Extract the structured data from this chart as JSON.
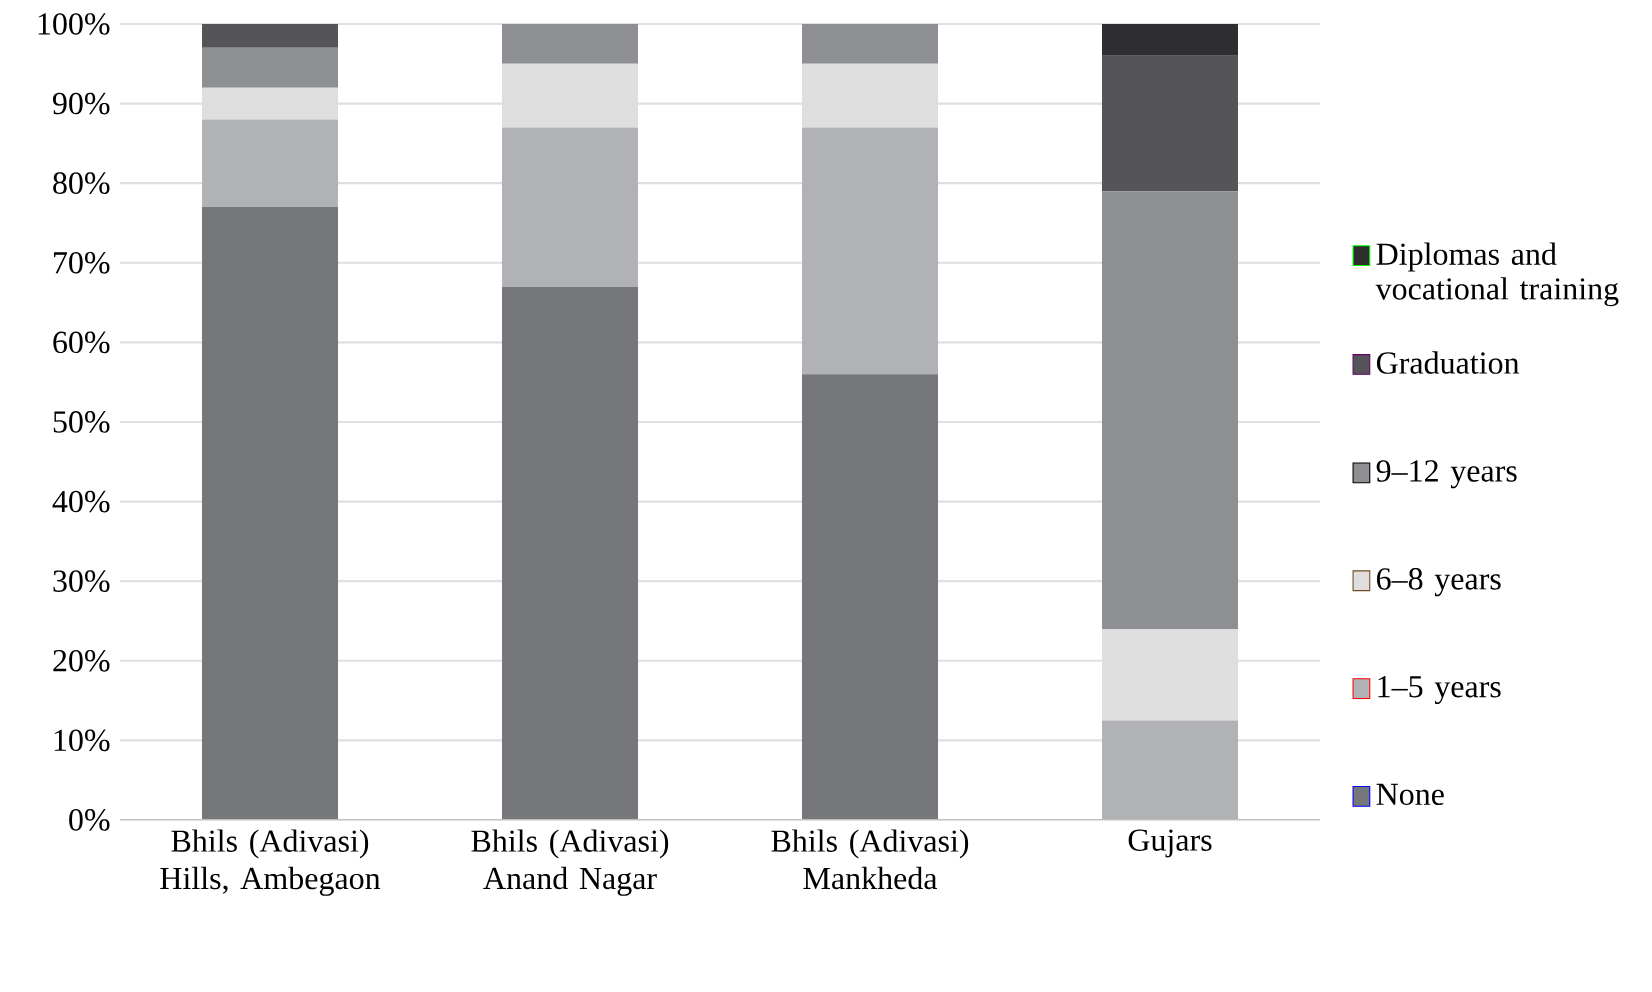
{
  "chart_data": {
    "type": "bar",
    "stacked": true,
    "categories": [
      "Bhils (Adivasi) Hills, Ambegaon",
      "Bhils (Adivasi) Anand Nagar",
      "Bhils (Adivasi) Mankheda",
      "Gujars"
    ],
    "series": [
      {
        "name": "None",
        "color": "#76777b",
        "values": [
          77,
          67,
          56,
          0
        ]
      },
      {
        "name": "1–5 years",
        "color": "#b1b2b6",
        "values": [
          11,
          20,
          31,
          12.5
        ]
      },
      {
        "name": "6–8 years",
        "color": "#dededf",
        "values": [
          4,
          8,
          8,
          11.5
        ]
      },
      {
        "name": "9–12 years",
        "color": "#8e8f93",
        "values": [
          5,
          5,
          5,
          55
        ]
      },
      {
        "name": "Graduation",
        "color": "#555559",
        "values": [
          3,
          0,
          0,
          17
        ]
      },
      {
        "name": "Diplomas and vocational training",
        "color": "#2e2e30",
        "values": [
          0,
          0,
          0,
          4
        ]
      }
    ],
    "ylim": [
      0,
      100
    ],
    "yticks": [
      {
        "value": 0,
        "label": "0%"
      },
      {
        "value": 10,
        "label": "10%"
      },
      {
        "value": 20,
        "label": "20%"
      },
      {
        "value": 30,
        "label": "30%"
      },
      {
        "value": 40,
        "label": "40%"
      },
      {
        "value": 50,
        "label": "50%"
      },
      {
        "value": 60,
        "label": "60%"
      },
      {
        "value": 70,
        "label": "70%"
      },
      {
        "value": 80,
        "label": "80%"
      },
      {
        "value": 90,
        "label": "90%"
      },
      {
        "value": 100,
        "label": "100%"
      }
    ],
    "grid": "y",
    "legend": "right"
  }
}
